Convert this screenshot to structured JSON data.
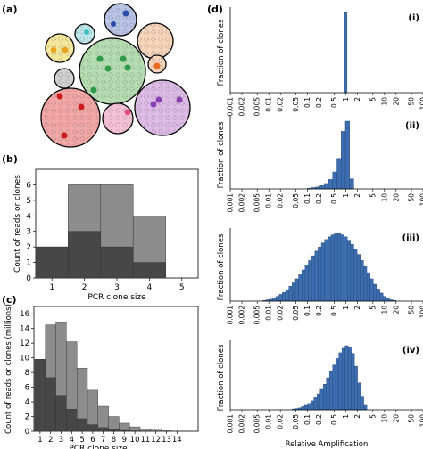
{
  "panel_labels": {
    "a": "(a)",
    "b": "(b)",
    "c": "(c)",
    "d": "(d)"
  },
  "sub_labels": [
    "(i)",
    "(ii)",
    "(iii)",
    "(iv)"
  ],
  "colors": {
    "dark_bar": "#474747",
    "light_bar": "#8c8c8c",
    "hist_bar": "#3b6db0",
    "bubble_green": "#b6ddb1",
    "bubble_red": "#f2a6a6",
    "bubble_purple": "#ddbbe6",
    "bubble_blue": "#b9c3e6",
    "bubble_yellow": "#f5e79a",
    "bubble_cyan": "#bfe8ea",
    "bubble_peach": "#f7d5bb",
    "bubble_pink": "#f4c1d4",
    "bubble_grey": "#d0d0d0"
  },
  "chart_data": [
    {
      "id": "b",
      "type": "bar",
      "title": "",
      "xlabel": "PCR clone size",
      "ylabel": "Count of reads or clones",
      "categories": [
        "1",
        "2",
        "3",
        "4",
        "5"
      ],
      "series": [
        {
          "values": [
            2,
            6,
            6,
            4,
            0
          ]
        },
        {
          "values": [
            2,
            3,
            2,
            1,
            0
          ]
        }
      ],
      "xlim": [
        0.5,
        5.5
      ],
      "ylim": [
        0,
        7
      ],
      "yticks": [
        "0",
        "1",
        "2",
        "3",
        "4",
        "5",
        "6"
      ],
      "grid": false
    },
    {
      "id": "c",
      "type": "bar",
      "title": "",
      "xlabel": "PCR clone size",
      "ylabel": "Count of reads or clones (millions)",
      "categories": [
        "1",
        "2",
        "3",
        "4",
        "5",
        "6",
        "7",
        "8",
        "9",
        "10",
        "11",
        "12",
        "13",
        "14"
      ],
      "series": [
        {
          "values": [
            9.8,
            14.5,
            14.8,
            12.2,
            8.6,
            5.6,
            3.4,
            2.0,
            1.1,
            0.6,
            0.3,
            0.15,
            0.07,
            0.03
          ]
        },
        {
          "values": [
            9.8,
            7.3,
            4.9,
            3.0,
            1.7,
            0.9,
            0.5,
            0.25,
            0.12,
            0.06,
            0.03,
            0.015,
            0.005,
            0.002
          ]
        }
      ],
      "ylim": [
        0,
        17
      ],
      "yticks": [
        "0",
        "2",
        "4",
        "6",
        "8",
        "10",
        "12",
        "14",
        "16"
      ],
      "grid": false
    },
    {
      "id": "d-i",
      "type": "bar",
      "ylabel": "Fraction of clones",
      "xscale": "log",
      "xlim": [
        0.001,
        100
      ],
      "xticks": [
        "0.001",
        "0.002",
        "0.005",
        "0.01",
        "0.02",
        "0.05",
        "0.1",
        "0.2",
        "0.5",
        "1",
        "2",
        "5",
        "10",
        "20",
        "50",
        "100"
      ],
      "bins": [
        {
          "from": 0.93,
          "to": 1.07,
          "value": 1.0
        }
      ]
    },
    {
      "id": "d-ii",
      "type": "bar",
      "ylabel": "Fraction of clones",
      "xscale": "log",
      "xlim": [
        0.001,
        100
      ],
      "xticks": [
        "0.001",
        "0.002",
        "0.005",
        "0.01",
        "0.02",
        "0.05",
        "0.1",
        "0.2",
        "0.5",
        "1",
        "2",
        "5",
        "10",
        "20",
        "50",
        "100"
      ],
      "bins_from": 0.1,
      "bins_to": 1.6,
      "values": [
        0.01,
        0.02,
        0.03,
        0.05,
        0.08,
        0.14,
        0.25,
        0.45,
        0.85,
        1.0,
        0.15
      ]
    },
    {
      "id": "d-iii",
      "type": "bar",
      "ylabel": "Fraction of clones",
      "xscale": "log",
      "xlim": [
        0.001,
        100
      ],
      "xticks": [
        "0.001",
        "0.002",
        "0.005",
        "0.01",
        "0.02",
        "0.05",
        "0.1",
        "0.2",
        "0.5",
        "1",
        "2",
        "5",
        "10",
        "20",
        "50",
        "100"
      ],
      "bins_from": 0.007,
      "bins_to": 20,
      "values": [
        0.01,
        0.02,
        0.03,
        0.05,
        0.07,
        0.1,
        0.13,
        0.17,
        0.22,
        0.27,
        0.33,
        0.39,
        0.46,
        0.53,
        0.6,
        0.67,
        0.74,
        0.8,
        0.86,
        0.91,
        0.95,
        0.98,
        1.0,
        1.0,
        0.98,
        0.95,
        0.9,
        0.84,
        0.77,
        0.69,
        0.6,
        0.51,
        0.42,
        0.33,
        0.25,
        0.18,
        0.12,
        0.07,
        0.04,
        0.02,
        0.01
      ]
    },
    {
      "id": "d-iv",
      "type": "bar",
      "xlabel": "Relative Amplification",
      "ylabel": "Fraction of clones",
      "xscale": "log",
      "xlim": [
        0.001,
        100
      ],
      "xticks": [
        "0.001",
        "0.002",
        "0.005",
        "0.01",
        "0.02",
        "0.05",
        "0.1",
        "0.2",
        "0.5",
        "1",
        "2",
        "5",
        "10",
        "20",
        "50",
        "100"
      ],
      "bins_from": 0.04,
      "bins_to": 3.5,
      "values": [
        0.01,
        0.02,
        0.03,
        0.05,
        0.07,
        0.1,
        0.14,
        0.19,
        0.25,
        0.32,
        0.4,
        0.5,
        0.6,
        0.7,
        0.8,
        0.89,
        0.96,
        1.0,
        0.98,
        0.88,
        0.68,
        0.42,
        0.2,
        0.07
      ]
    }
  ]
}
